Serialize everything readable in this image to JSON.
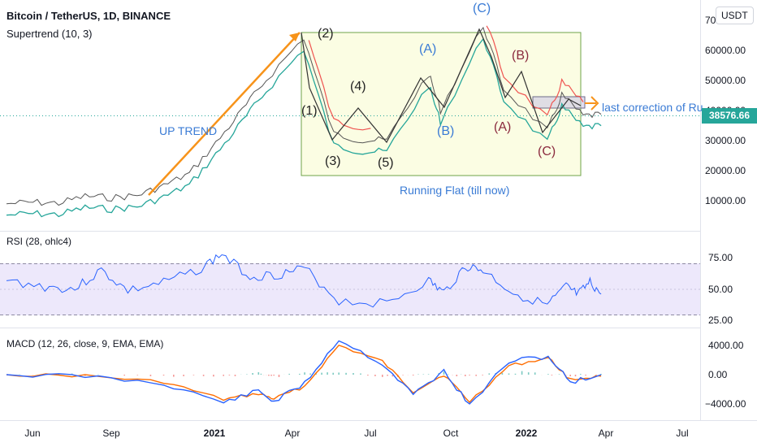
{
  "header": {
    "symbol": "Bitcoin / TetherUS, 1D, BINANCE",
    "indicator": "Supertrend (10, 3)",
    "currency": "USDT"
  },
  "price_pane": {
    "y_ticks": [
      "70000.00",
      "60000.00",
      "50000.00",
      "40000.00",
      "30000.00",
      "20000.00",
      "10000.00"
    ],
    "last_price": "38576.66"
  },
  "rsi_pane": {
    "title": "RSI (28, ohlc4)",
    "y_ticks": [
      "75.00",
      "50.00",
      "25.00"
    ]
  },
  "macd_pane": {
    "title": "MACD (12, 26, close, 9, EMA, EMA)",
    "y_ticks": [
      "4000.00",
      "0.00",
      "−4000.00"
    ]
  },
  "x_ticks": [
    "Jun",
    "Sep",
    "2021",
    "Apr",
    "Jul",
    "Oct",
    "2022",
    "Apr",
    "Jul"
  ],
  "annotations": {
    "up_trend": "UP TREND",
    "running_flat": "Running Flat (till now)",
    "last_correction": "last correction of Ru",
    "waves": {
      "w1": "(1)",
      "w2": "(2)",
      "w3": "(3)",
      "w4": "(4)",
      "w5": "(5)",
      "A1": "(A)",
      "B1": "(B)",
      "C1": "(C)",
      "A2": "(A)",
      "B2": "(B)",
      "C2": "(C)"
    }
  },
  "colors": {
    "price_line": "#2962ff",
    "supertrend_up": "#26a69a",
    "supertrend_down": "#ef5350",
    "up_trend_line": "#f7931a",
    "flat_box_fill": "#fbfde3",
    "flat_box_border": "#6fa34a",
    "wave_blue": "#3a7bd5",
    "wave_red": "#8b2a3e",
    "macd_line": "#2962ff",
    "signal_line": "#ff6d00",
    "last_price_badge": "#26a69a"
  },
  "chart_data": [
    {
      "type": "line",
      "title": "Bitcoin / TetherUS, 1D, BINANCE",
      "ylim": [
        5000,
        72000
      ],
      "x": [
        "2020-05-01",
        "2020-06-01",
        "2020-07-01",
        "2020-08-01",
        "2020-09-01",
        "2020-10-01",
        "2020-11-01",
        "2020-12-01",
        "2021-01-01",
        "2021-02-01",
        "2021-03-01",
        "2021-04-14",
        "2021-05-19",
        "2021-06-22",
        "2021-07-20",
        "2021-09-07",
        "2021-09-21",
        "2021-11-10",
        "2021-12-04",
        "2022-01-24",
        "2022-02-10",
        "2022-03-07",
        "2022-03-28"
      ],
      "series": [
        {
          "name": "Price",
          "values": [
            9000,
            9500,
            9200,
            11500,
            11000,
            11800,
            15000,
            19000,
            29000,
            40000,
            50000,
            64000,
            32000,
            30000,
            30000,
            52000,
            40000,
            68000,
            47000,
            33000,
            45000,
            38000,
            38576.66
          ]
        }
      ]
    },
    {
      "type": "line",
      "title": "RSI (28, ohlc4)",
      "ylim": [
        25,
        100
      ],
      "x": [
        "2020-05-01",
        "2020-06-15",
        "2020-07-20",
        "2020-08-20",
        "2020-09-20",
        "2020-11-01",
        "2020-12-15",
        "2021-01-08",
        "2021-02-10",
        "2021-03-15",
        "2021-04-15",
        "2021-05-25",
        "2021-07-20",
        "2021-09-07",
        "2021-09-25",
        "2021-10-20",
        "2021-11-10",
        "2021-12-15",
        "2022-01-24",
        "2022-02-15",
        "2022-03-01",
        "2022-03-15",
        "2022-03-28"
      ],
      "series": [
        {
          "name": "RSI",
          "values": [
            58,
            52,
            50,
            68,
            48,
            56,
            70,
            84,
            62,
            64,
            70,
            38,
            36,
            58,
            46,
            72,
            68,
            46,
            34,
            52,
            44,
            56,
            45
          ]
        }
      ]
    },
    {
      "type": "line",
      "title": "MACD (12, 26, close, 9, EMA, EMA)",
      "ylim": [
        -6000,
        5000
      ],
      "x": [
        "2020-05-01",
        "2020-08-01",
        "2020-11-01",
        "2021-01-10",
        "2021-02-20",
        "2021-03-10",
        "2021-04-15",
        "2021-05-25",
        "2021-07-15",
        "2021-08-20",
        "2021-09-25",
        "2021-10-25",
        "2021-12-10",
        "2022-01-25",
        "2022-02-20",
        "2022-03-28"
      ],
      "series": [
        {
          "name": "MACD",
          "values": [
            0,
            200,
            1200,
            3800,
            2200,
            3700,
            1200,
            -4800,
            -1500,
            2700,
            -500,
            4200,
            -1800,
            -2500,
            1000,
            0
          ]
        },
        {
          "name": "Signal",
          "values": [
            0,
            150,
            1000,
            3400,
            2600,
            3300,
            1600,
            -4000,
            -1800,
            2300,
            0,
            3700,
            -1200,
            -2300,
            700,
            200
          ]
        }
      ]
    }
  ]
}
